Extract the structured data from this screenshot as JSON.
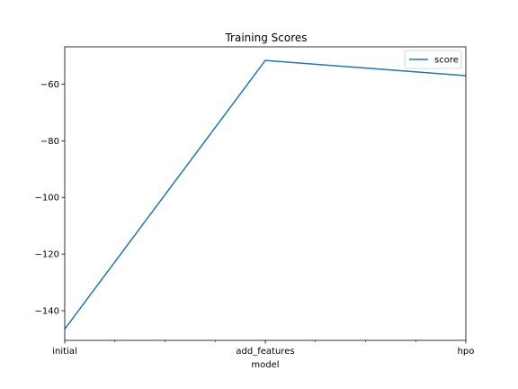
{
  "chart_data": {
    "type": "line",
    "title": "Training Scores",
    "xlabel": "model",
    "ylabel": "",
    "categories": [
      "initial",
      "add_features",
      "hpo"
    ],
    "series": [
      {
        "name": "score",
        "values": [
          -146.5,
          -51.6,
          -57.0
        ],
        "color": "#1f77b4"
      }
    ],
    "ylim": [
      -150.5,
      -46.8
    ],
    "yticks": [
      -140,
      -120,
      -100,
      -80,
      -60
    ],
    "grid": false,
    "legend": "top-right"
  }
}
